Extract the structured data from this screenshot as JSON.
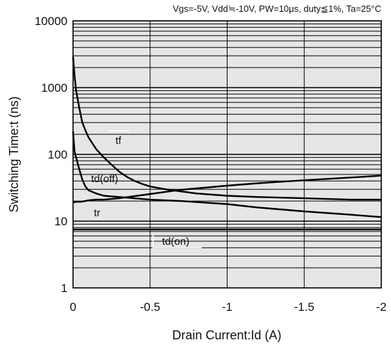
{
  "chart_data": {
    "type": "line",
    "conditions": "Vgs=-5V, Vdd≒-10V, PW=10μs, duty≦1%, Ta=25°C",
    "xlabel": "Drain Current:Id  (A)",
    "ylabel": "Switching Time:t  (ns)",
    "xlim": [
      0,
      -2
    ],
    "ylim": [
      1,
      10000
    ],
    "yscale": "log",
    "grid": true,
    "x_ticks": [
      "0",
      "-0.5",
      "-1",
      "-1.5",
      "-2"
    ],
    "y_ticks": [
      "1",
      "10",
      "100",
      "1000",
      "10000"
    ],
    "series": [
      {
        "name": "tf",
        "points": [
          [
            0,
            2900
          ],
          [
            -0.01,
            1500
          ],
          [
            -0.02,
            900
          ],
          [
            -0.04,
            500
          ],
          [
            -0.06,
            300
          ],
          [
            -0.08,
            230
          ],
          [
            -0.1,
            180
          ],
          [
            -0.15,
            120
          ],
          [
            -0.2,
            90
          ],
          [
            -0.25,
            70
          ],
          [
            -0.3,
            55
          ],
          [
            -0.35,
            46
          ],
          [
            -0.4,
            40
          ],
          [
            -0.45,
            36
          ],
          [
            -0.5,
            33
          ],
          [
            -0.6,
            30
          ],
          [
            -0.8,
            26
          ],
          [
            -1.0,
            24
          ],
          [
            -1.2,
            23
          ],
          [
            -1.5,
            22
          ],
          [
            -1.8,
            21
          ],
          [
            -2.0,
            21
          ]
        ]
      },
      {
        "name": "td(off)",
        "points": [
          [
            0,
            220
          ],
          [
            -0.01,
            110
          ],
          [
            -0.02,
            90
          ],
          [
            -0.04,
            60
          ],
          [
            -0.06,
            42
          ],
          [
            -0.08,
            33
          ],
          [
            -0.1,
            29
          ],
          [
            -0.15,
            26
          ],
          [
            -0.2,
            24
          ],
          [
            -0.3,
            23
          ],
          [
            -0.5,
            21
          ],
          [
            -0.7,
            20
          ],
          [
            -1.0,
            18
          ],
          [
            -1.2,
            16
          ],
          [
            -1.5,
            14
          ],
          [
            -1.8,
            12.5
          ],
          [
            -2.0,
            11.5
          ]
        ]
      },
      {
        "name": "tr",
        "points": [
          [
            0,
            19
          ],
          [
            -0.02,
            19.5
          ],
          [
            -0.05,
            19.5
          ],
          [
            -0.08,
            20
          ],
          [
            -0.1,
            20.5
          ],
          [
            -0.15,
            21
          ],
          [
            -0.2,
            21
          ],
          [
            -0.3,
            22
          ],
          [
            -0.5,
            25.5
          ],
          [
            -0.7,
            29.5
          ],
          [
            -1.0,
            34
          ],
          [
            -1.2,
            37
          ],
          [
            -1.5,
            41
          ],
          [
            -1.8,
            45
          ],
          [
            -2.0,
            48
          ]
        ]
      },
      {
        "name": "td(on)",
        "points": [
          [
            0,
            7.5
          ],
          [
            -2.0,
            7.5
          ]
        ]
      }
    ],
    "annotations": [
      "tf",
      "td(off)",
      "tr",
      "td(on)"
    ]
  }
}
